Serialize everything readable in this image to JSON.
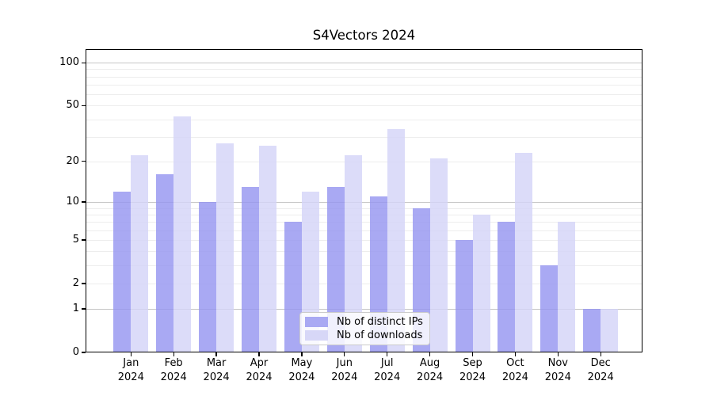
{
  "chart_data": {
    "type": "bar",
    "title": "S4Vectors 2024",
    "categories": [
      "Jan 2024",
      "Feb 2024",
      "Mar 2024",
      "Apr 2024",
      "May 2024",
      "Jun 2024",
      "Jul 2024",
      "Aug 2024",
      "Sep 2024",
      "Oct 2024",
      "Nov 2024",
      "Dec 2024"
    ],
    "series": [
      {
        "name": "Nb of distinct IPs",
        "key": "distinct-ips",
        "color": "#a9a9f3",
        "fill": "rgba(147,147,240,0.8)",
        "values": [
          12,
          16,
          10,
          13,
          7,
          13,
          11,
          9,
          5,
          7,
          3,
          1
        ]
      },
      {
        "name": "Nb of downloads",
        "key": "downloads",
        "color": "#d7d7f7",
        "fill": "rgba(211,211,247,0.8)",
        "values": [
          22,
          42,
          27,
          26,
          12,
          22,
          34,
          21,
          8,
          23,
          7,
          1
        ]
      }
    ],
    "xlabel": "",
    "ylabel": "",
    "y_scale": "log10(value+1)",
    "y_tick_labels": [
      0,
      1,
      2,
      5,
      10,
      20,
      50,
      100
    ],
    "y_major_gridlines": [
      1,
      10,
      100
    ],
    "y_minor_gridlines": [
      2,
      3,
      4,
      5,
      6,
      7,
      8,
      9,
      20,
      30,
      40,
      50,
      60,
      70,
      80,
      90
    ],
    "ylim": [
      0,
      125
    ],
    "grid": true,
    "legend": {
      "position": "bottom-center-inside"
    }
  }
}
